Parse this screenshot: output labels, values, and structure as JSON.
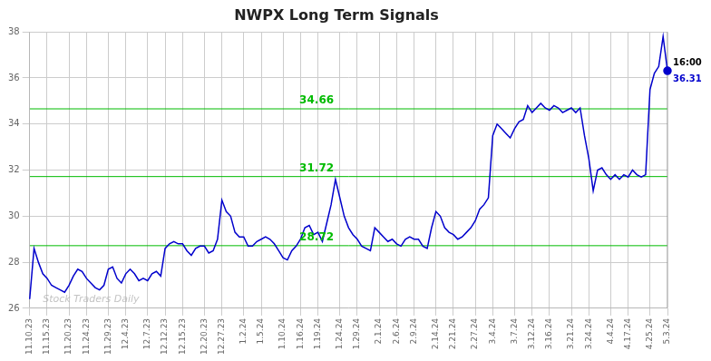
{
  "chart_data": {
    "type": "line",
    "title": "NWPX Long Term Signals",
    "categories": [
      "11.10.23",
      null,
      null,
      null,
      "11.15.23",
      null,
      null,
      null,
      null,
      "11.20.23",
      null,
      null,
      null,
      "11.24.23",
      null,
      null,
      null,
      null,
      "11.29.23",
      null,
      null,
      null,
      "12.4.23",
      null,
      null,
      null,
      null,
      "12.7.23",
      null,
      null,
      null,
      "12.12.23",
      null,
      null,
      null,
      "12.15.23",
      null,
      null,
      null,
      null,
      "12.20.23",
      null,
      null,
      null,
      "12.27.23",
      null,
      null,
      null,
      null,
      "1.2.24",
      null,
      null,
      null,
      "1.5.24",
      null,
      null,
      null,
      null,
      "1.10.24",
      null,
      null,
      null,
      "1.16.24",
      null,
      null,
      null,
      "1.19.24",
      null,
      null,
      null,
      null,
      "1.24.24",
      null,
      null,
      null,
      "1.29.24",
      null,
      null,
      null,
      null,
      "2.1.24",
      null,
      null,
      null,
      "2.6.24",
      null,
      null,
      null,
      "2.9.24",
      null,
      null,
      null,
      null,
      "2.14.24",
      null,
      null,
      null,
      "2.21.24",
      null,
      null,
      null,
      null,
      "2.27.24",
      null,
      null,
      null,
      "3.4.24",
      null,
      null,
      null,
      null,
      "3.7.24",
      null,
      null,
      null,
      "3.12.24",
      null,
      null,
      null,
      "3.16.24",
      null,
      null,
      null,
      null,
      "3.21.24",
      null,
      null,
      null,
      "3.24.24",
      null,
      null,
      null,
      null,
      "4.4.24",
      null,
      null,
      null,
      "4.17.24",
      null,
      null,
      null,
      null,
      "4.25.24",
      null,
      null,
      null,
      "5.3.24"
    ],
    "values": [
      26.4,
      28.6,
      28.0,
      27.5,
      27.3,
      27.0,
      26.9,
      26.8,
      26.7,
      27.0,
      27.4,
      27.7,
      27.6,
      27.3,
      27.1,
      26.9,
      26.8,
      27.0,
      27.7,
      27.8,
      27.3,
      27.1,
      27.5,
      27.7,
      27.5,
      27.2,
      27.3,
      27.2,
      27.5,
      27.6,
      27.4,
      28.6,
      28.8,
      28.9,
      28.8,
      28.8,
      28.5,
      28.3,
      28.6,
      28.7,
      28.7,
      28.4,
      28.5,
      29.0,
      30.7,
      30.2,
      30.0,
      29.3,
      29.1,
      29.1,
      28.7,
      28.7,
      28.9,
      29.0,
      29.1,
      29.0,
      28.8,
      28.5,
      28.2,
      28.1,
      28.5,
      28.7,
      29.0,
      29.5,
      29.6,
      29.2,
      29.3,
      28.9,
      29.7,
      30.5,
      31.6,
      30.8,
      30.0,
      29.5,
      29.2,
      29.0,
      28.7,
      28.6,
      28.5,
      29.5,
      29.3,
      29.1,
      28.9,
      29.0,
      28.8,
      28.7,
      29.0,
      29.1,
      29.0,
      29.0,
      28.7,
      28.6,
      29.5,
      30.2,
      30.0,
      29.5,
      29.3,
      29.2,
      29.0,
      29.1,
      29.3,
      29.5,
      29.8,
      30.3,
      30.5,
      30.8,
      33.5,
      34.0,
      33.8,
      33.6,
      33.4,
      33.8,
      34.1,
      34.2,
      34.8,
      34.5,
      34.7,
      34.9,
      34.7,
      34.6,
      34.8,
      34.7,
      34.5,
      34.6,
      34.7,
      34.5,
      34.7,
      33.5,
      32.5,
      31.1,
      32.0,
      32.1,
      31.8,
      31.6,
      31.8,
      31.6,
      31.8,
      31.7,
      32.0,
      31.8,
      31.7,
      31.8,
      35.5,
      36.2,
      36.5,
      37.8,
      36.31
    ],
    "color": "#0000cc",
    "ylim": [
      26,
      38
    ],
    "yticks": [
      26,
      28,
      30,
      32,
      34,
      36,
      38
    ],
    "grid": true,
    "hlines": [
      {
        "value": 28.72,
        "label": "28.72",
        "color": "#00bb00"
      },
      {
        "value": 31.72,
        "label": "31.72",
        "color": "#00bb00"
      },
      {
        "value": 34.66,
        "label": "34.66",
        "color": "#00bb00"
      }
    ],
    "point_labels": [
      "16:00",
      "36.31"
    ],
    "watermark": "Stock Traders Daily"
  }
}
